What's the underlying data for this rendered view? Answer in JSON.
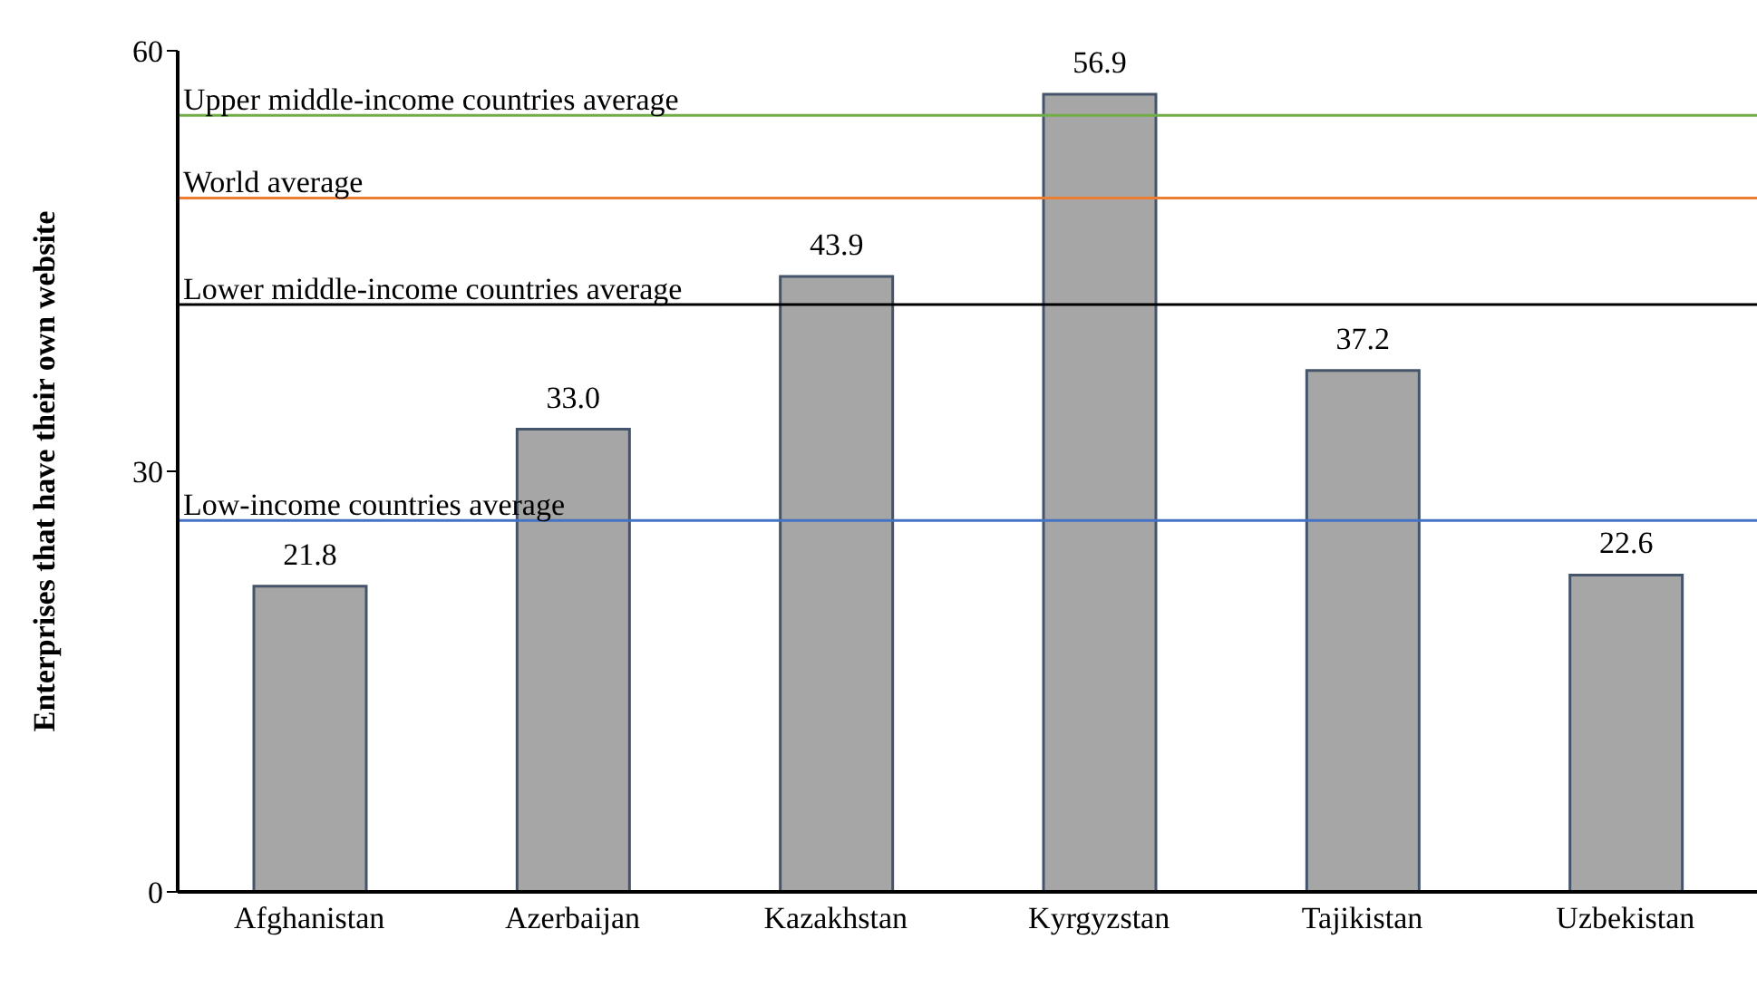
{
  "chart_data": {
    "type": "bar",
    "ylabel": "Enterprises that have their own website",
    "categories": [
      "Afghanistan",
      "Azerbaijan",
      "Kazakhstan",
      "Kyrgyzstan",
      "Tajikistan",
      "Uzbekistan"
    ],
    "values": [
      21.8,
      33.0,
      43.9,
      56.9,
      37.2,
      22.6
    ],
    "color": "#a6a6a6",
    "value_labels": [
      "21.8",
      "33.0",
      "43.9",
      "56.9",
      "37.2",
      "22.6"
    ],
    "ylim": [
      0,
      60
    ],
    "yticks": [
      0,
      30,
      60
    ],
    "grid": false,
    "legend": false,
    "ref_lines": [
      {
        "axis": "y",
        "value": 55.4,
        "label": "Upper middle-income countries average",
        "color": "#70ad47"
      },
      {
        "axis": "y",
        "value": 49.5,
        "label": "World average",
        "color": "#ed7d31"
      },
      {
        "axis": "y",
        "value": 41.9,
        "label": "Lower middle-income countries average",
        "color": "#000000"
      },
      {
        "axis": "y",
        "value": 26.5,
        "label": "Low-income countries average",
        "color": "#4472c4"
      }
    ]
  }
}
